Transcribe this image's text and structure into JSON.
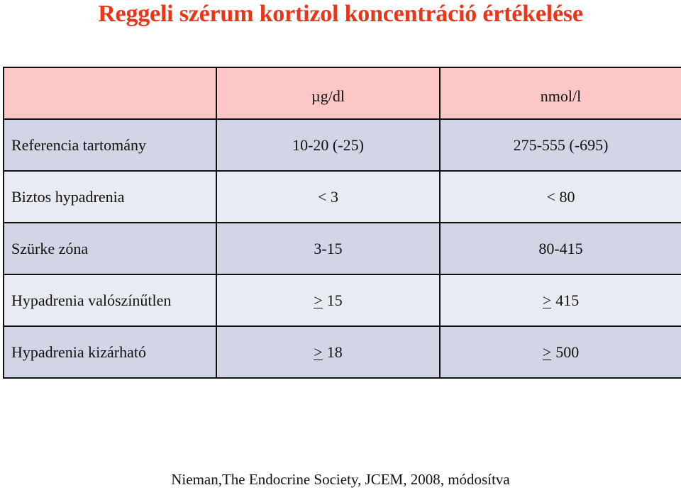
{
  "title": "Reggeli szérum kortizol koncentráció értékelése",
  "table": {
    "headers": [
      "",
      "µg/dl",
      "nmol/l"
    ],
    "rows": [
      {
        "label": "Referencia tartomány",
        "ugdl_op": "",
        "ugdl": "10-20 (-25)",
        "nmoll_op": "",
        "nmoll": "275-555 (-695)"
      },
      {
        "label": "Biztos hypadrenia",
        "ugdl_op": "",
        "ugdl": "< 3",
        "nmoll_op": "",
        "nmoll": "< 80"
      },
      {
        "label": "Szürke zóna",
        "ugdl_op": "",
        "ugdl": "3-15",
        "nmoll_op": "",
        "nmoll": "80-415"
      },
      {
        "label": "Hypadrenia valószínűtlen",
        "ugdl_op": ">",
        "ugdl": "15",
        "nmoll_op": ">",
        "nmoll": "415"
      },
      {
        "label": "Hypadrenia kizárható",
        "ugdl_op": ">",
        "ugdl": "18",
        "nmoll_op": ">",
        "nmoll": "500"
      }
    ]
  },
  "source": "Nieman,The Endocrine Society, JCEM, 2008, módosítva"
}
